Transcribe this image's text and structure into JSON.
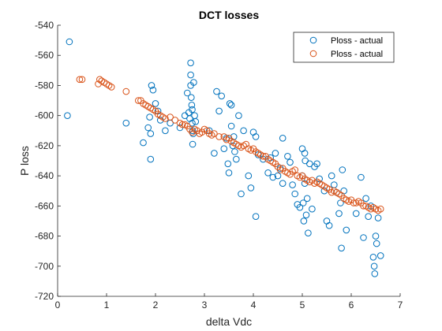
{
  "chart_data": {
    "type": "scatter",
    "title": "DCT losses",
    "xlabel": "delta Vdc",
    "ylabel": "P loss",
    "xlim": [
      0,
      7
    ],
    "ylim": [
      -720,
      -540
    ],
    "xticks": [
      0,
      1,
      2,
      3,
      4,
      5,
      6,
      7
    ],
    "yticks": [
      -540,
      -560,
      -580,
      -600,
      -620,
      -640,
      -660,
      -680,
      -700,
      -720
    ],
    "grid": false,
    "legend_position": "top-right",
    "series": [
      {
        "name": "Ploss - actual",
        "color": "#0072BD",
        "points": [
          [
            0.24,
            -551
          ],
          [
            0.2,
            -600
          ],
          [
            1.4,
            -605
          ],
          [
            1.75,
            -618
          ],
          [
            1.85,
            -608
          ],
          [
            1.9,
            -612
          ],
          [
            1.9,
            -629
          ],
          [
            1.88,
            -601
          ],
          [
            1.92,
            -580
          ],
          [
            1.95,
            -583
          ],
          [
            2.0,
            -592
          ],
          [
            2.05,
            -597
          ],
          [
            2.1,
            -603
          ],
          [
            2.2,
            -610
          ],
          [
            2.3,
            -605
          ],
          [
            2.5,
            -608
          ],
          [
            2.6,
            -600
          ],
          [
            2.65,
            -585
          ],
          [
            2.68,
            -598
          ],
          [
            2.7,
            -602
          ],
          [
            2.72,
            -565
          ],
          [
            2.72,
            -573
          ],
          [
            2.72,
            -580
          ],
          [
            2.73,
            -588
          ],
          [
            2.74,
            -593
          ],
          [
            2.75,
            -596
          ],
          [
            2.75,
            -605
          ],
          [
            2.76,
            -610
          ],
          [
            2.76,
            -619
          ],
          [
            2.77,
            -612
          ],
          [
            2.78,
            -578
          ],
          [
            2.8,
            -600
          ],
          [
            2.82,
            -604
          ],
          [
            3.1,
            -610
          ],
          [
            3.2,
            -625
          ],
          [
            3.25,
            -584
          ],
          [
            3.3,
            -597
          ],
          [
            3.35,
            -587
          ],
          [
            3.4,
            -622
          ],
          [
            3.45,
            -615
          ],
          [
            3.48,
            -632
          ],
          [
            3.5,
            -638
          ],
          [
            3.52,
            -592
          ],
          [
            3.55,
            -593
          ],
          [
            3.55,
            -607
          ],
          [
            3.58,
            -620
          ],
          [
            3.6,
            -614
          ],
          [
            3.62,
            -624
          ],
          [
            3.65,
            -629
          ],
          [
            3.7,
            -600
          ],
          [
            3.75,
            -652
          ],
          [
            3.8,
            -610
          ],
          [
            3.9,
            -640
          ],
          [
            3.95,
            -648
          ],
          [
            4.0,
            -611
          ],
          [
            4.05,
            -614
          ],
          [
            4.05,
            -667
          ],
          [
            4.1,
            -626
          ],
          [
            4.2,
            -629
          ],
          [
            4.3,
            -638
          ],
          [
            4.35,
            -628
          ],
          [
            4.4,
            -641
          ],
          [
            4.45,
            -625
          ],
          [
            4.5,
            -640
          ],
          [
            4.55,
            -635
          ],
          [
            4.6,
            -615
          ],
          [
            4.6,
            -645
          ],
          [
            4.7,
            -627
          ],
          [
            4.75,
            -631
          ],
          [
            4.8,
            -646
          ],
          [
            4.85,
            -652
          ],
          [
            4.9,
            -659
          ],
          [
            4.95,
            -661
          ],
          [
            5.0,
            -622
          ],
          [
            5.0,
            -640
          ],
          [
            5.02,
            -658
          ],
          [
            5.03,
            -670
          ],
          [
            5.05,
            -625
          ],
          [
            5.05,
            -645
          ],
          [
            5.06,
            -630
          ],
          [
            5.08,
            -666
          ],
          [
            5.1,
            -655
          ],
          [
            5.12,
            -678
          ],
          [
            5.15,
            -632
          ],
          [
            5.2,
            -662
          ],
          [
            5.25,
            -634
          ],
          [
            5.3,
            -632
          ],
          [
            5.35,
            -642
          ],
          [
            5.45,
            -650
          ],
          [
            5.5,
            -670
          ],
          [
            5.55,
            -673
          ],
          [
            5.6,
            -640
          ],
          [
            5.65,
            -646
          ],
          [
            5.7,
            -651
          ],
          [
            5.75,
            -665
          ],
          [
            5.78,
            -658
          ],
          [
            5.8,
            -688
          ],
          [
            5.82,
            -636
          ],
          [
            5.85,
            -650
          ],
          [
            5.9,
            -676
          ],
          [
            6.1,
            -665
          ],
          [
            6.2,
            -641
          ],
          [
            6.25,
            -681
          ],
          [
            6.3,
            -655
          ],
          [
            6.35,
            -667
          ],
          [
            6.4,
            -660
          ],
          [
            6.45,
            -694
          ],
          [
            6.47,
            -700
          ],
          [
            6.48,
            -705
          ],
          [
            6.5,
            -680
          ],
          [
            6.52,
            -685
          ],
          [
            6.55,
            -668
          ],
          [
            6.6,
            -693
          ]
        ]
      },
      {
        "name": "Ploss - actual",
        "color": "#D95319",
        "points": [
          [
            0.45,
            -576
          ],
          [
            0.5,
            -576
          ],
          [
            0.83,
            -579
          ],
          [
            0.86,
            -576
          ],
          [
            0.9,
            -577
          ],
          [
            0.95,
            -578
          ],
          [
            1.0,
            -579
          ],
          [
            1.05,
            -580
          ],
          [
            1.1,
            -581
          ],
          [
            1.4,
            -584
          ],
          [
            1.65,
            -590
          ],
          [
            1.7,
            -590
          ],
          [
            1.75,
            -592
          ],
          [
            1.8,
            -593
          ],
          [
            1.85,
            -594
          ],
          [
            1.9,
            -595
          ],
          [
            1.95,
            -596
          ],
          [
            2.0,
            -597
          ],
          [
            2.05,
            -599
          ],
          [
            2.1,
            -600
          ],
          [
            2.15,
            -601
          ],
          [
            2.2,
            -602
          ],
          [
            2.3,
            -601
          ],
          [
            2.4,
            -603
          ],
          [
            2.5,
            -605
          ],
          [
            2.55,
            -606
          ],
          [
            2.6,
            -606
          ],
          [
            2.65,
            -607
          ],
          [
            2.7,
            -609
          ],
          [
            2.75,
            -611
          ],
          [
            2.8,
            -609
          ],
          [
            2.85,
            -610
          ],
          [
            2.9,
            -612
          ],
          [
            2.95,
            -611
          ],
          [
            3.0,
            -609
          ],
          [
            3.05,
            -610
          ],
          [
            3.1,
            -612
          ],
          [
            3.15,
            -613
          ],
          [
            3.2,
            -612
          ],
          [
            3.3,
            -614
          ],
          [
            3.4,
            -614
          ],
          [
            3.45,
            -616
          ],
          [
            3.5,
            -615
          ],
          [
            3.55,
            -617
          ],
          [
            3.6,
            -618
          ],
          [
            3.65,
            -619
          ],
          [
            3.7,
            -620
          ],
          [
            3.75,
            -621
          ],
          [
            3.8,
            -620
          ],
          [
            3.85,
            -619
          ],
          [
            3.9,
            -622
          ],
          [
            3.95,
            -623
          ],
          [
            4.0,
            -622
          ],
          [
            4.05,
            -624
          ],
          [
            4.1,
            -625
          ],
          [
            4.15,
            -626
          ],
          [
            4.2,
            -627
          ],
          [
            4.25,
            -627
          ],
          [
            4.3,
            -629
          ],
          [
            4.35,
            -630
          ],
          [
            4.4,
            -631
          ],
          [
            4.45,
            -632
          ],
          [
            4.5,
            -634
          ],
          [
            4.55,
            -636
          ],
          [
            4.6,
            -635
          ],
          [
            4.65,
            -637
          ],
          [
            4.7,
            -638
          ],
          [
            4.75,
            -639
          ],
          [
            4.8,
            -637
          ],
          [
            4.85,
            -636
          ],
          [
            4.9,
            -640
          ],
          [
            4.95,
            -641
          ],
          [
            5.0,
            -640
          ],
          [
            5.05,
            -642
          ],
          [
            5.1,
            -643
          ],
          [
            5.15,
            -644
          ],
          [
            5.2,
            -643
          ],
          [
            5.25,
            -645
          ],
          [
            5.3,
            -644
          ],
          [
            5.35,
            -645
          ],
          [
            5.4,
            -646
          ],
          [
            5.45,
            -647
          ],
          [
            5.5,
            -648
          ],
          [
            5.55,
            -649
          ],
          [
            5.6,
            -651
          ],
          [
            5.65,
            -650
          ],
          [
            5.7,
            -651
          ],
          [
            5.75,
            -652
          ],
          [
            5.8,
            -653
          ],
          [
            5.85,
            -655
          ],
          [
            5.9,
            -656
          ],
          [
            5.95,
            -657
          ],
          [
            6.0,
            -656
          ],
          [
            6.05,
            -658
          ],
          [
            6.1,
            -658
          ],
          [
            6.15,
            -657
          ],
          [
            6.2,
            -658
          ],
          [
            6.25,
            -660
          ],
          [
            6.3,
            -660
          ],
          [
            6.35,
            -661
          ],
          [
            6.4,
            -662
          ],
          [
            6.45,
            -661
          ],
          [
            6.5,
            -662
          ],
          [
            6.55,
            -663
          ],
          [
            6.6,
            -662
          ]
        ]
      }
    ]
  }
}
